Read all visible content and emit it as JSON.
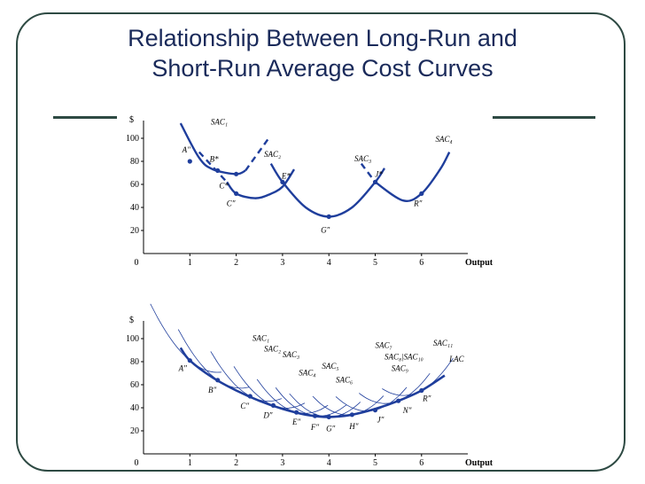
{
  "slide": {
    "title_line1": "Relationship Between Long-Run and",
    "title_line2": "Short-Run Average Cost Curves"
  },
  "colors": {
    "frame": "#2e4a43",
    "title": "#1a2a5a",
    "curve": "#1f3e9c"
  },
  "chart_data": [
    {
      "type": "line",
      "x_tick_labels": [
        "0",
        "1",
        "2",
        "3",
        "4",
        "5",
        "6"
      ],
      "y_tick_labels": [
        "20",
        "40",
        "60",
        "80",
        "100"
      ],
      "y_unit": "$",
      "xlabel": "Output",
      "xlim": [
        0,
        7
      ],
      "ylim": [
        0,
        110
      ],
      "series": [
        {
          "name": "SAC₁",
          "points": [
            [
              0.8,
              113
            ],
            [
              1.2,
              83
            ],
            [
              1.5,
              73
            ],
            [
              2.0,
              69
            ],
            [
              2.2,
              72
            ]
          ],
          "dashed_tail": [
            [
              2.2,
              72
            ],
            [
              2.7,
              100
            ]
          ]
        },
        {
          "name": "SAC₂",
          "points": [
            [
              1.8,
              62
            ],
            [
              2.0,
              52
            ],
            [
              2.4,
              48
            ],
            [
              2.7,
              51
            ],
            [
              3.0,
              58
            ],
            [
              3.25,
              73
            ]
          ],
          "dashed_tail": [
            [
              1.2,
              88
            ],
            [
              1.8,
              62
            ]
          ]
        },
        {
          "name": "SAC₃",
          "points": [
            [
              2.75,
              78
            ],
            [
              3.0,
              62
            ],
            [
              3.5,
              40
            ],
            [
              4.0,
              32
            ],
            [
              4.5,
              40
            ],
            [
              5.0,
              62
            ],
            [
              5.2,
              74
            ]
          ],
          "dashed_tail": [
            [
              4.7,
              78
            ],
            [
              5.0,
              62
            ]
          ]
        },
        {
          "name": "SAC₄",
          "points": [
            [
              5.0,
              62
            ],
            [
              5.6,
              46
            ],
            [
              6.0,
              52
            ],
            [
              6.4,
              73
            ],
            [
              6.6,
              88
            ]
          ]
        }
      ],
      "points": [
        {
          "label": "A″",
          "x": 1.0,
          "y": 80
        },
        {
          "label": "B*",
          "x": 1.6,
          "y": 72
        },
        {
          "label": "C*",
          "x": 2.0,
          "y": 69
        },
        {
          "label": "C″",
          "x": 2.0,
          "y": 52
        },
        {
          "label": "E*",
          "x": 3.0,
          "y": 62
        },
        {
          "label": "G″",
          "x": 4.0,
          "y": 32
        },
        {
          "label": "J*",
          "x": 5.0,
          "y": 62
        },
        {
          "label": "R″",
          "x": 6.0,
          "y": 52
        }
      ],
      "curve_labels": [
        "SAC₁",
        "SAC₂",
        "SAC₃",
        "SAC₄"
      ]
    },
    {
      "type": "line",
      "x_tick_labels": [
        "0",
        "1",
        "2",
        "3",
        "4",
        "5",
        "6"
      ],
      "y_tick_labels": [
        "20",
        "40",
        "60",
        "80",
        "100"
      ],
      "y_unit": "$",
      "xlabel": "Output",
      "xlim": [
        0,
        7
      ],
      "ylim": [
        0,
        110
      ],
      "series": [
        {
          "name": "LAC",
          "points": [
            [
              0.8,
              92
            ],
            [
              1.0,
              81
            ],
            [
              1.5,
              66
            ],
            [
              2.0,
              55
            ],
            [
              2.5,
              46
            ],
            [
              3.0,
              39
            ],
            [
              3.5,
              34
            ],
            [
              4.0,
              32
            ],
            [
              4.5,
              34
            ],
            [
              5.0,
              39
            ],
            [
              5.5,
              46
            ],
            [
              6.0,
              55
            ],
            [
              6.5,
              68
            ]
          ]
        }
      ],
      "sac_curves": [
        "SAC₁",
        "SAC₂",
        "SAC₃",
        "SAC₄",
        "SAC₅",
        "SAC₆",
        "SAC₇",
        "SAC₈",
        "SAC₉",
        "SAC₁₀",
        "SAC₁₁"
      ],
      "points": [
        {
          "label": "A″",
          "x": 1.0,
          "y": 81
        },
        {
          "label": "B″",
          "x": 1.6,
          "y": 64
        },
        {
          "label": "C″",
          "x": 2.3,
          "y": 50
        },
        {
          "label": "D″",
          "x": 2.8,
          "y": 42
        },
        {
          "label": "E″",
          "x": 3.3,
          "y": 36
        },
        {
          "label": "F″",
          "x": 3.7,
          "y": 33
        },
        {
          "label": "G″",
          "x": 4.0,
          "y": 32
        },
        {
          "label": "H″",
          "x": 4.5,
          "y": 34
        },
        {
          "label": "J″",
          "x": 5.0,
          "y": 38
        },
        {
          "label": "N″",
          "x": 5.5,
          "y": 46
        },
        {
          "label": "R″",
          "x": 6.0,
          "y": 55
        }
      ],
      "curve_labels": [
        "SAC₁",
        "SAC₂",
        "SAC₃",
        "SAC₄",
        "SAC₅",
        "SAC₆",
        "SAC₇",
        "SAC₈|SAC₁₀",
        "SAC₉",
        "SAC₁₁",
        "LAC"
      ]
    }
  ]
}
